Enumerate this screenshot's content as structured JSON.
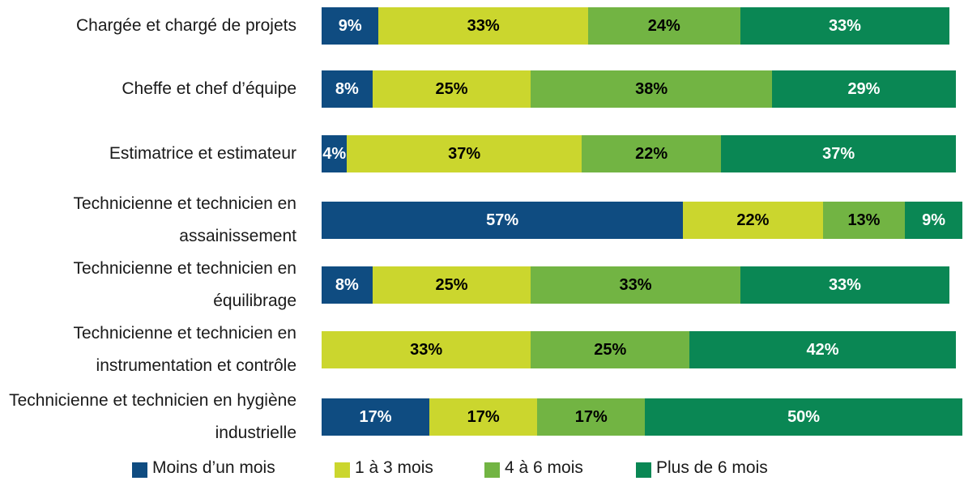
{
  "chart_data": {
    "type": "bar",
    "orientation": "horizontal",
    "stacked": true,
    "categories": [
      "Chargée et chargé de projets",
      "Cheffe et chef d’équipe",
      "Estimatrice et estimateur",
      "Technicienne et technicien en assainissement",
      "Technicienne et technicien en équilibrage",
      "Technicienne et technicien en instrumentation et contrôle",
      "Technicienne et technicien en hygiène industrielle"
    ],
    "series": [
      {
        "name": "Moins d’un mois",
        "color": "#0f4c81",
        "text_color": "#ffffff",
        "values": [
          9,
          8,
          4,
          57,
          8,
          null,
          17
        ],
        "value_labels": [
          "9%",
          "8%",
          "4%",
          "57%",
          "8%",
          null,
          "17%"
        ]
      },
      {
        "name": "1 à 3 mois",
        "color": "#cbd62e",
        "text_color": "#000000",
        "values": [
          33,
          25,
          37,
          22,
          25,
          33,
          17
        ],
        "value_labels": [
          "33%",
          "25%",
          "37%",
          "22%",
          "25%",
          "33%",
          "17%"
        ]
      },
      {
        "name": "4 à 6 mois",
        "color": "#72b443",
        "text_color": "#000000",
        "values": [
          24,
          38,
          22,
          13,
          33,
          25,
          17
        ],
        "value_labels": [
          "24%",
          "38%",
          "22%",
          "13%",
          "33%",
          "25%",
          "17%"
        ]
      },
      {
        "name": "Plus de 6 mois",
        "color": "#0a8754",
        "text_color": "#ffffff",
        "values": [
          33,
          29,
          37,
          9,
          33,
          42,
          50
        ],
        "value_labels": [
          "33%",
          "29%",
          "37%",
          "9%",
          "33%",
          "42%",
          "50%"
        ]
      }
    ],
    "legend": "bottom"
  }
}
